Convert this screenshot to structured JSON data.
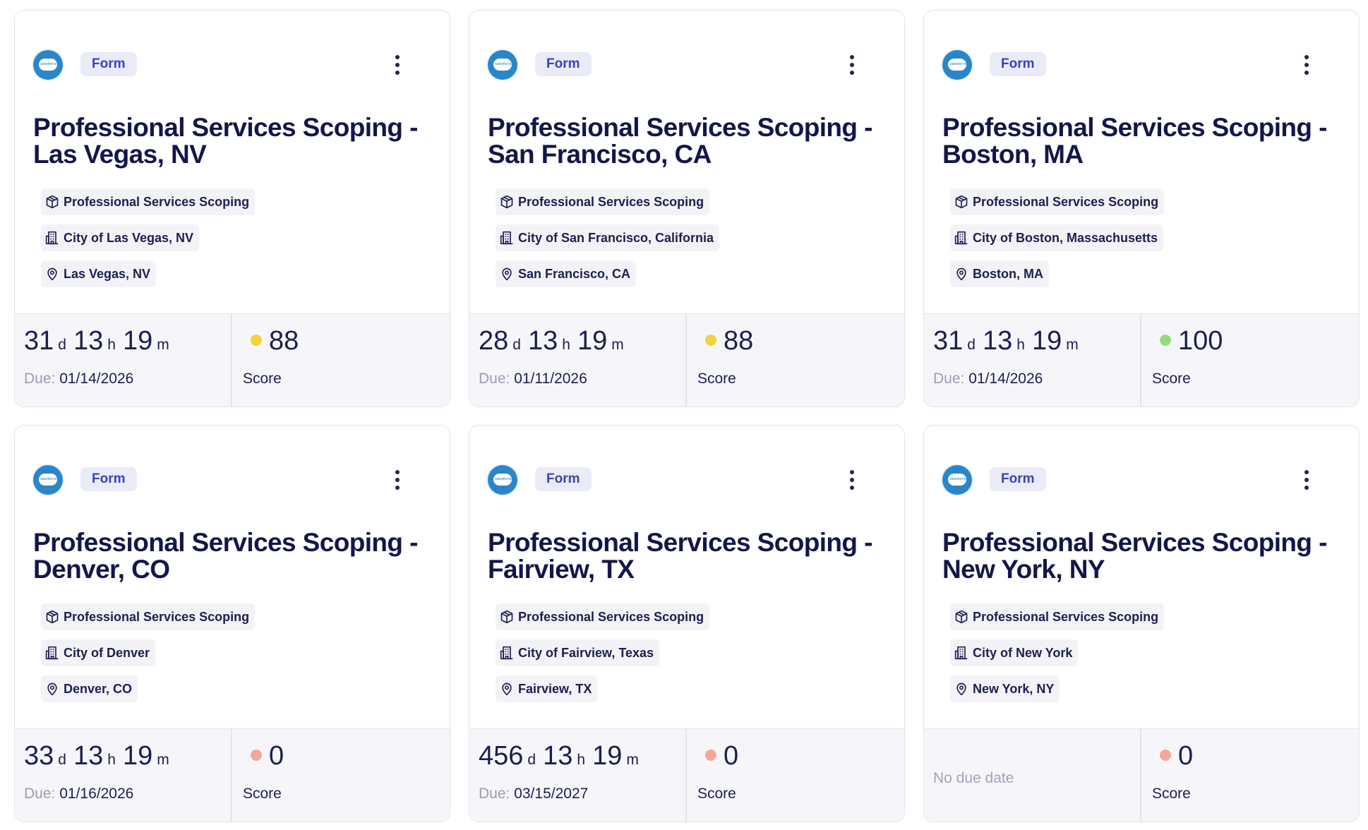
{
  "cards": [
    {
      "badge": "Form",
      "title": "Professional Services Scoping - Las Vegas, NV",
      "category": "Professional Services Scoping",
      "organization": "City of Las Vegas, NV",
      "location": "Las Vegas, NV",
      "countdown": {
        "days": "31",
        "hours": "13",
        "minutes": "19"
      },
      "due_label": "Due:",
      "due_date": "01/14/2026",
      "score": "88",
      "score_color": "#f2d33a",
      "score_label": "Score"
    },
    {
      "badge": "Form",
      "title": "Professional Services Scoping - San Francisco, CA",
      "category": "Professional Services Scoping",
      "organization": "City of San Francisco, California",
      "location": "San Francisco, CA",
      "countdown": {
        "days": "28",
        "hours": "13",
        "minutes": "19"
      },
      "due_label": "Due:",
      "due_date": "01/11/2026",
      "score": "88",
      "score_color": "#f2d33a",
      "score_label": "Score"
    },
    {
      "badge": "Form",
      "title": "Professional Services Scoping - Boston, MA",
      "category": "Professional Services Scoping",
      "organization": "City of Boston, Massachusetts",
      "location": "Boston, MA",
      "countdown": {
        "days": "31",
        "hours": "13",
        "minutes": "19"
      },
      "due_label": "Due:",
      "due_date": "01/14/2026",
      "score": "100",
      "score_color": "#8fe07a",
      "score_label": "Score"
    },
    {
      "badge": "Form",
      "title": "Professional Services Scoping - Denver, CO",
      "category": "Professional Services Scoping",
      "organization": "City of Denver",
      "location": "Denver, CO",
      "countdown": {
        "days": "33",
        "hours": "13",
        "minutes": "19"
      },
      "due_label": "Due:",
      "due_date": "01/16/2026",
      "score": "0",
      "score_color": "#f2a896",
      "score_label": "Score"
    },
    {
      "badge": "Form",
      "title": "Professional Services Scoping - Fairview, TX",
      "category": "Professional Services Scoping",
      "organization": "City of Fairview, Texas",
      "location": "Fairview, TX",
      "countdown": {
        "days": "456",
        "hours": "13",
        "minutes": "19"
      },
      "due_label": "Due:",
      "due_date": "03/15/2027",
      "score": "0",
      "score_color": "#f2a896",
      "score_label": "Score"
    },
    {
      "badge": "Form",
      "title": "Professional Services Scoping - New York, NY",
      "category": "Professional Services Scoping",
      "organization": "City of New York",
      "location": "New York, NY",
      "countdown": null,
      "no_due_text": "No due date",
      "score": "0",
      "score_color": "#f2a896",
      "score_label": "Score"
    }
  ],
  "units": {
    "days": "d",
    "hours": "h",
    "minutes": "m"
  },
  "icons": {
    "logo": "salesforce-logo",
    "menu": "more-vertical-icon",
    "category": "package-icon",
    "organization": "building-icon",
    "location": "map-pin-icon"
  }
}
